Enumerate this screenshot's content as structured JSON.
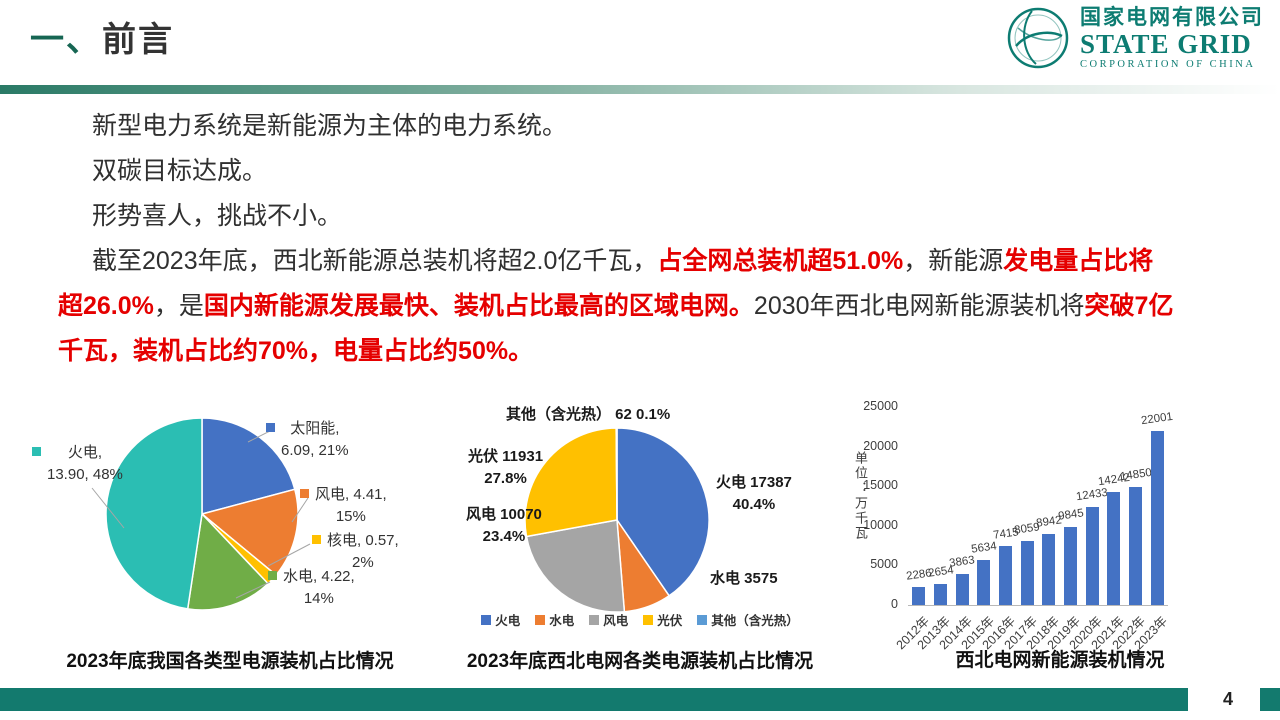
{
  "header": {
    "title_prefix": "一、",
    "title_text": "前言",
    "logo": {
      "company_cn": "国家电网有限公司",
      "company_en": "STATE GRID",
      "company_sub": "CORPORATION OF CHINA"
    }
  },
  "body": {
    "lines": [
      {
        "indent": true,
        "segments": [
          {
            "t": "新型电力系统是新能源为主体的电力系统。",
            "red": false
          }
        ]
      },
      {
        "indent": true,
        "segments": [
          {
            "t": "双碳目标达成。",
            "red": false
          }
        ]
      },
      {
        "indent": true,
        "segments": [
          {
            "t": "形势喜人，挑战不小。",
            "red": false
          }
        ]
      },
      {
        "indent": true,
        "segments": [
          {
            "t": "截至2023年底，西北新能源总装机将超2.0亿千瓦，",
            "red": false
          },
          {
            "t": "占全网总装机超51.0%",
            "red": true
          },
          {
            "t": "，新能源",
            "red": false
          },
          {
            "t": "发电量占比将",
            "red": true
          }
        ]
      },
      {
        "indent": false,
        "segments": [
          {
            "t": "超26.0%",
            "red": true
          },
          {
            "t": "，是",
            "red": false
          },
          {
            "t": "国内新能源发展最快、装机占比最高的区域电网。",
            "red": true
          },
          {
            "t": "2030年西北电网新能源装机将",
            "red": false
          },
          {
            "t": "突破7亿",
            "red": true
          }
        ]
      },
      {
        "indent": false,
        "segments": [
          {
            "t": "千瓦，装机占比约70%，电量占比约50%。",
            "red": true
          }
        ]
      }
    ]
  },
  "chart_data": [
    {
      "type": "pie",
      "title": "2023年底我国各类型电源装机占比情况",
      "slices": [
        {
          "label": "太阳能",
          "value": 6.09,
          "pct": 21,
          "color": "#4472C4",
          "label_text": "太阳能,\n6.09, 21%"
        },
        {
          "label": "风电",
          "value": 4.41,
          "pct": 15,
          "color": "#ED7D31",
          "label_text": "风电, 4.41,\n15%"
        },
        {
          "label": "核电",
          "value": 0.57,
          "pct": 2,
          "color": "#FFC000",
          "label_text": "核电, 0.57,\n2%"
        },
        {
          "label": "水电",
          "value": 4.22,
          "pct": 14,
          "color": "#70AD47",
          "label_text": "水电, 4.22,\n14%"
        },
        {
          "label": "火电",
          "value": 13.9,
          "pct": 48,
          "color": "#2BBEB3",
          "label_text": "火电,\n13.90, 48%"
        }
      ]
    },
    {
      "type": "pie",
      "title": "2023年底西北电网各类电源装机占比情况",
      "slices": [
        {
          "label": "火电",
          "value": 17387,
          "pct": 40.4,
          "color": "#4472C4",
          "label_text": "火电 17387\n40.4%"
        },
        {
          "label": "水电",
          "value": 3575,
          "pct": null,
          "color": "#ED7D31",
          "label_text": "水电 3575"
        },
        {
          "label": "风电",
          "value": 10070,
          "pct": 23.4,
          "color": "#A5A5A5",
          "label_text": "风电 10070\n23.4%"
        },
        {
          "label": "光伏",
          "value": 11931,
          "pct": 27.8,
          "color": "#FFC000",
          "label_text": "光伏 11931\n27.8%"
        },
        {
          "label": "其他（含光热）",
          "value": 62,
          "pct": 0.1,
          "color": "#5B9BD5",
          "label_text": "其他（含光热） 62  0.1%"
        }
      ],
      "legend_position": "bottom"
    },
    {
      "type": "bar",
      "title": "西北电网新能源装机情况",
      "ylabel": "单位：万千瓦",
      "categories": [
        "2012年",
        "2013年",
        "2014年",
        "2015年",
        "2016年",
        "2017年",
        "2018年",
        "2019年",
        "2020年",
        "2021年",
        "2022年",
        "2023年"
      ],
      "values": [
        2286,
        2654,
        3863,
        5634,
        7415,
        8059,
        8942,
        9845,
        12433,
        14242,
        14850,
        22001
      ],
      "yticks": [
        0,
        5000,
        10000,
        15000,
        20000,
        25000
      ],
      "ylim": [
        0,
        25000
      ],
      "bar_color": "#4472C4",
      "grid": false
    }
  ],
  "footer": {
    "page_number": "4"
  },
  "colors": {
    "accent_green": "#166653",
    "footer_teal": "#137A6E",
    "logo_teal": "#0D7C72",
    "highlight_red": "#E50000"
  }
}
